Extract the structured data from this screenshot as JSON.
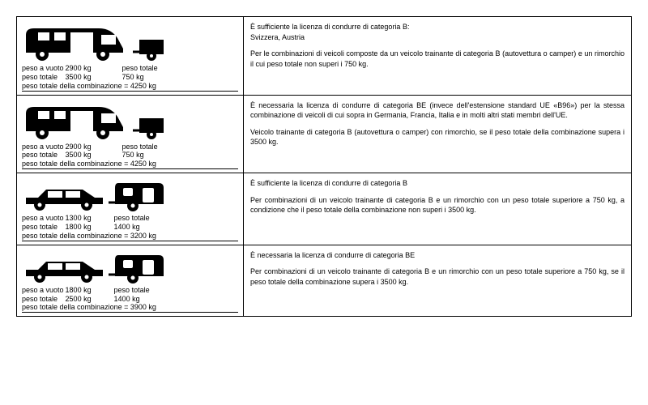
{
  "labels": {
    "peso_vuoto": "peso a vuoto",
    "peso_totale": "peso totale",
    "combo_prefix": "peso totale della combinazione = "
  },
  "rows": [
    {
      "vehicle_type": "motorhome",
      "vehicle_empty": "2900 kg",
      "vehicle_total": "3500 kg",
      "trailer_total": "750 kg",
      "combo_total": "4250 kg",
      "text1": "È sufficiente la licenza di condurre di categoria B:",
      "text2": "Svizzera, Austria",
      "text3": "Per le combinazioni di veicoli composte da un veicolo trainante di categoria B (autovettura o camper) e un rimorchio il cui peso totale non superi i 750 kg."
    },
    {
      "vehicle_type": "motorhome",
      "vehicle_empty": "2900 kg",
      "vehicle_total": "3500 kg",
      "trailer_total": "750 kg",
      "combo_total": "4250 kg",
      "text1": "È necessaria la licenza di condurre di categoria BE (invece dell'estensione standard UE «B96») per la stessa combinazione di veicoli di cui sopra in Germania, Francia, Italia e in molti altri stati membri dell'UE.",
      "text2": "",
      "text3": "Veicolo trainante di categoria B (autovettura o camper) con rimorchio, se il peso totale della combinazione supera i 3500 kg."
    },
    {
      "vehicle_type": "car",
      "vehicle_empty": "1300 kg",
      "vehicle_total": "1800 kg",
      "trailer_total": "1400 kg",
      "combo_total": "3200 kg",
      "text1": "È sufficiente la licenza di condurre di categoria B",
      "text2": "",
      "text3": "Per combinazioni di un veicolo trainante di categoria B e un rimorchio con un peso totale superiore a 750 kg, a condizione che il peso totale della combinazione non superi i 3500 kg."
    },
    {
      "vehicle_type": "car",
      "vehicle_empty": "1800 kg",
      "vehicle_total": "2500 kg",
      "trailer_total": "1400 kg",
      "combo_total": "3900 kg",
      "text1": "È necessaria la licenza di condurre di categoria BE",
      "text2": "",
      "text3": "Per combinazioni di un veicolo trainante di categoria B e un rimorchio con un peso totale superiore a 750 kg, se il peso totale della combinazione supera i 3500 kg."
    }
  ],
  "colors": {
    "fg": "#000000",
    "bg": "#ffffff"
  },
  "font_sizes": {
    "body": 9,
    "weights": 9
  }
}
